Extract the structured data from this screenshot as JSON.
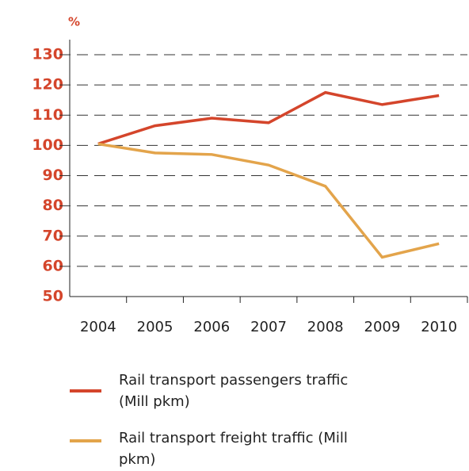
{
  "chart_data": {
    "type": "line",
    "y_label": "%",
    "categories": [
      "2004",
      "2005",
      "2006",
      "2007",
      "2008",
      "2009",
      "2010"
    ],
    "series": [
      {
        "name": "Rail transport passengers traffic (Mill pkm)",
        "color": "#d4452b",
        "values": [
          100.5,
          106.5,
          109,
          107.5,
          117.5,
          113.5,
          116.5
        ]
      },
      {
        "name": "Rail transport freight traffic (Mill pkm)",
        "color": "#e3a44b",
        "values": [
          100.5,
          97.5,
          97,
          93.5,
          86.5,
          63,
          67.5
        ]
      }
    ],
    "ylim": [
      50,
      130
    ],
    "yticks": [
      50,
      60,
      70,
      80,
      90,
      100,
      110,
      120,
      130
    ],
    "grid": true,
    "tick_color": "#d4452b"
  }
}
